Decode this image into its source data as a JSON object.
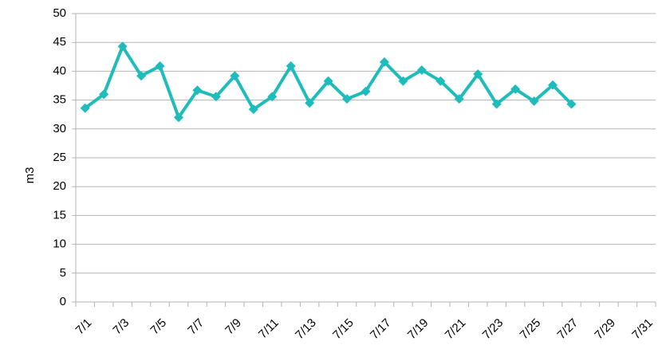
{
  "chart_data": {
    "type": "line",
    "y_label": "m3",
    "categories": [
      "7/1",
      null,
      "7/3",
      null,
      "7/5",
      null,
      "7/7",
      null,
      "7/9",
      null,
      "7/11",
      null,
      "7/13",
      null,
      "7/15",
      null,
      "7/17",
      null,
      "7/19",
      null,
      "7/21",
      null,
      "7/23",
      null,
      "7/25",
      null,
      "7/27",
      null,
      "7/29",
      null,
      "7/31"
    ],
    "series": [
      {
        "name": "m3",
        "color": "#1fbcbc",
        "values": [
          33.6,
          36.0,
          44.3,
          39.2,
          40.9,
          32.0,
          36.7,
          35.6,
          39.2,
          33.4,
          35.6,
          40.9,
          34.5,
          38.3,
          35.2,
          36.5,
          41.6,
          38.3,
          40.2,
          38.3,
          35.2,
          39.5,
          34.3,
          36.9,
          34.8,
          37.6,
          34.3,
          null,
          null,
          null,
          null
        ]
      }
    ],
    "ylim": [
      0,
      50
    ],
    "yticks": [
      0,
      5,
      10,
      15,
      20,
      25,
      30,
      35,
      40,
      45,
      50
    ],
    "grid": true
  }
}
